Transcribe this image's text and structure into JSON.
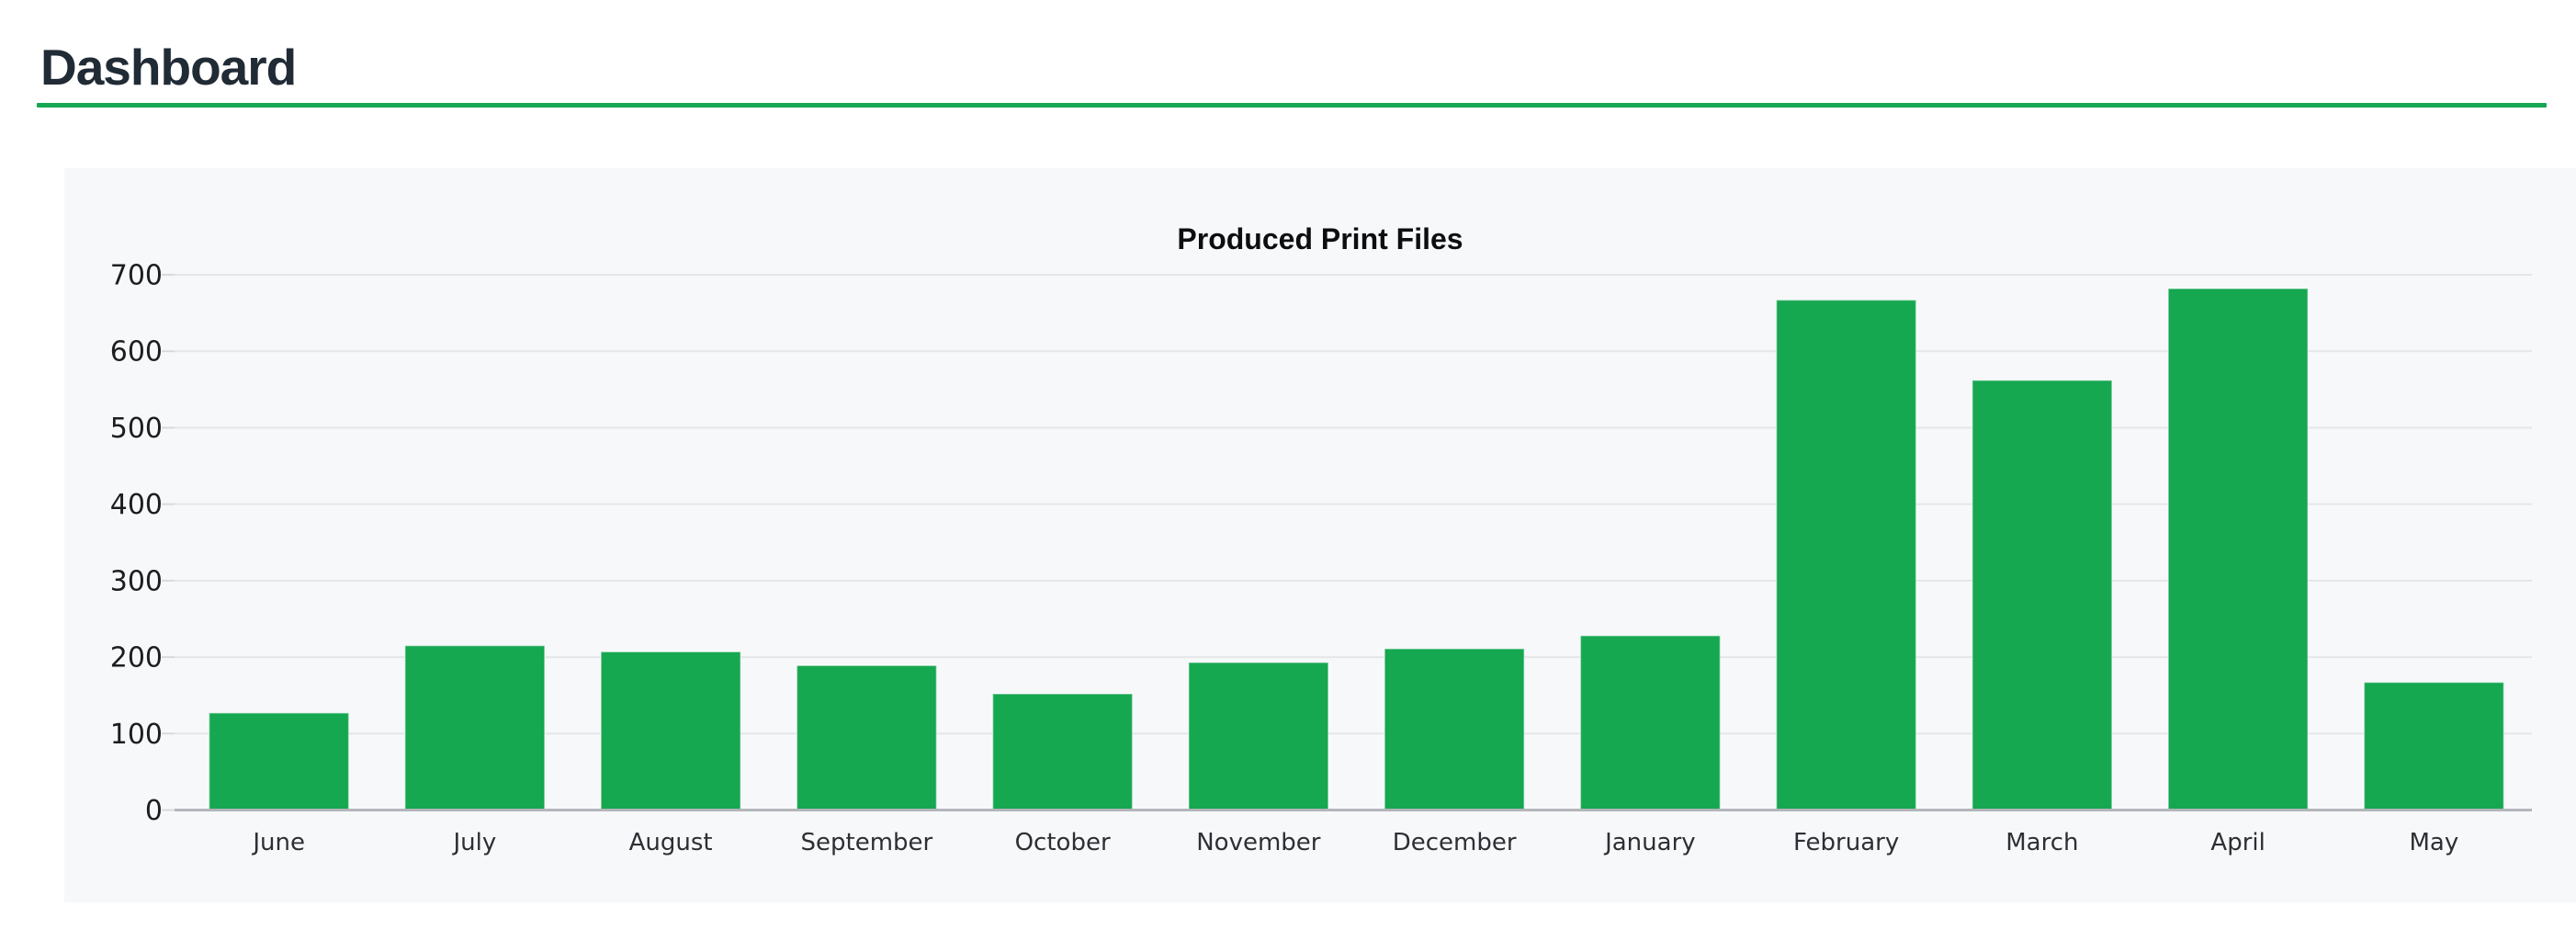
{
  "header": {
    "title": "Dashboard"
  },
  "theme": {
    "accent_green": "#16a751",
    "bar_color": "#16a751",
    "panel_bg": "#f7f8fa",
    "grid_color": "#e4e6e8",
    "tick_stub_color": "#d7dadd",
    "axis_line_color": "#b3b6ba",
    "heading_color": "#212b36",
    "chart_title_color": "#0c0e10",
    "ytick_label_color": "#1b1e21",
    "month_label_color": "#2c2f33"
  },
  "chart_data": {
    "type": "bar",
    "title": "Produced Print Files",
    "categories": [
      "June",
      "July",
      "August",
      "September",
      "October",
      "November",
      "December",
      "January",
      "February",
      "March",
      "April",
      "May"
    ],
    "values": [
      127,
      215,
      207,
      189,
      152,
      193,
      211,
      228,
      667,
      562,
      682,
      167
    ],
    "series_name": "Produced Print Files",
    "xlabel": "",
    "ylabel": "",
    "ylim": [
      0,
      700
    ],
    "ytick_step": 100,
    "ytick_labels": [
      "0",
      "100",
      "200",
      "300",
      "400",
      "500",
      "600",
      "700"
    ],
    "grid": true,
    "legend": false,
    "bar_color": "#16a751"
  }
}
